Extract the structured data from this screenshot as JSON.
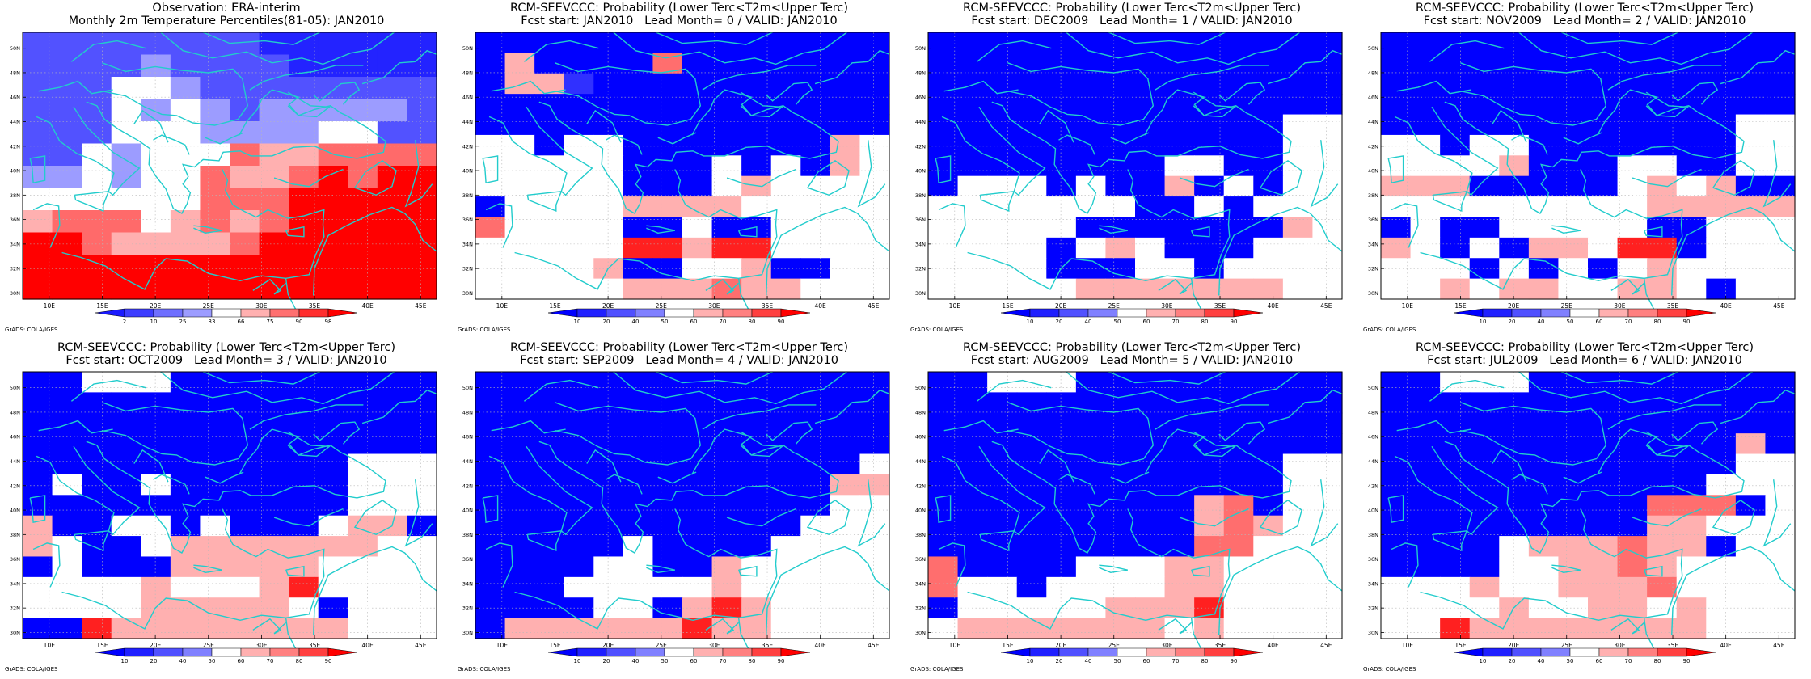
{
  "map": {
    "lon_ticks": [
      "10E",
      "15E",
      "20E",
      "25E",
      "30E",
      "35E",
      "40E",
      "45E"
    ],
    "lat_ticks": [
      "50N",
      "48N",
      "46N",
      "44N",
      "42N",
      "40N",
      "38N",
      "36N",
      "34N",
      "32N",
      "30N"
    ],
    "credit": "GrADS: COLA/IGES"
  },
  "panels": [
    {
      "title1": "Observation: ERA-interim",
      "title2": "Monthly 2m Temperature Percentiles(81-05): JAN2010",
      "legend_labels": [
        "2",
        "10",
        "25",
        "33",
        "66",
        "75",
        "90",
        "98"
      ],
      "legend_colors": [
        "#1a1aff",
        "#3d3dff",
        "#6f6fff",
        "#9c9cff",
        "#ffffff",
        "#ffb0b0",
        "#ff7070",
        "#ff2e2e",
        "#ff0000"
      ],
      "grid": [
        "22222222000000",
        "22223222200000",
        "22244322222222",
        "22243432333332",
        "22244433334422",
        "22434457667777",
        "33434576678788",
        "44444577788888",
        "67775676788888",
        "88766667888888",
        "88888888888888",
        "88888888888888"
      ]
    },
    {
      "title1": "RCM-SEEVCCC: Probability (Lower Terc<T2m<Upper Terc)",
      "title2": "Fcst start: JAN2010   Lead Month= 0 / VALID: JAN2010",
      "legend_labels": [
        "10",
        "20",
        "40",
        "50",
        "60",
        "70",
        "80",
        "90"
      ],
      "legend_colors": [
        "#0000ff",
        "#2020ff",
        "#5050ff",
        "#8080ff",
        "#ffffff",
        "#ffb0b0",
        "#ff8080",
        "#ff4040",
        "#ff0000"
      ],
      "grid": [
        "AAAAAAAAAAAAAA",
        "ASAAAARAAAAAAA",
        "ASSBAAAAAAAAAA",
        "AAAAAAAAAAAAAA",
        "AAAAAAAAAAAAAA",
        "WWAWWAAAAAAASW",
        "WWWWWAAAWAWASW",
        "WWWWWAAAWSWWWW",
        "AWWWWSSSSWWWWW",
        "RWWWWAAWAAWWWW",
        "WWWWWTTSTTWWWW",
        "WWWWSAAWWSAAWW",
        "WWWWWSSSRSSWWW"
      ]
    },
    {
      "title1": "RCM-SEEVCCC: Probability (Lower Terc<T2m<Upper Terc)",
      "title2": "Fcst start: DEC2009   Lead Month= 1 / VALID: JAN2010",
      "legend_labels": [
        "10",
        "20",
        "40",
        "50",
        "60",
        "70",
        "80",
        "90"
      ],
      "legend_colors": [
        "#0000ff",
        "#2020ff",
        "#5050ff",
        "#8080ff",
        "#ffffff",
        "#ffb0b0",
        "#ff8080",
        "#ff4040",
        "#ff0000"
      ],
      "grid": [
        "AAAAAAAAAAAAAA",
        "AAAAAAAAAAAAAA",
        "AAAAAAAAAAAAAA",
        "AAAAAAAAAAAAAA",
        "AAAAAAAAAAAAWW",
        "AAAAAAAAAAAAWW",
        "AAAAAAAAWWAAWW",
        "AWWWAWAASAWAWW",
        "WWWWWWWAAWAWWW",
        "WWWWWAAAAAAASW",
        "WWWWAWSWAAAWWW",
        "WWWWAAAWWAWWWW",
        "WWWWWSSSSSSSWW"
      ]
    },
    {
      "title1": "RCM-SEEVCCC: Probability (Lower Terc<T2m<Upper Terc)",
      "title2": "Fcst start: NOV2009   Lead Month= 2 / VALID: JAN2010",
      "legend_labels": [
        "10",
        "20",
        "40",
        "50",
        "60",
        "70",
        "80",
        "90"
      ],
      "legend_colors": [
        "#0000ff",
        "#2020ff",
        "#5050ff",
        "#8080ff",
        "#ffffff",
        "#ffb0b0",
        "#ff8080",
        "#ff4040",
        "#ff0000"
      ],
      "grid": [
        "AAAAAAAAAAAAAA",
        "AAAAAAAAAAAAAA",
        "AAAAAAAAAAAAAA",
        "AAAAAAAAAAAAAA",
        "AAAAAAAAAAAAWW",
        "WWAWWAAAAAAAWW",
        "WWWWSAAAWWAAWW",
        "SSSAAAAAWSWSAA",
        "WWWWWWWWWSSSSS",
        "AWAAWWWWWAAWWW",
        "SWAWASSWTTAWWW",
        "WWWAWAWAWSWWWW",
        "WWSWSSWWSSWAWW"
      ]
    },
    {
      "title1": "RCM-SEEVCCC: Probability (Lower Terc<T2m<Upper Terc)",
      "title2": "Fcst start: OCT2009   Lead Month= 3 / VALID: JAN2010",
      "legend_labels": [
        "10",
        "20",
        "40",
        "50",
        "60",
        "70",
        "80",
        "90"
      ],
      "legend_colors": [
        "#0000ff",
        "#2020ff",
        "#5050ff",
        "#8080ff",
        "#ffffff",
        "#ffb0b0",
        "#ff8080",
        "#ff4040",
        "#ff0000"
      ],
      "grid": [
        "AAWWWAAAAAAAAA",
        "AAAAAAAAAAAAAA",
        "AAAAAAAAAAAAAA",
        "AAAAAAAAAAAAAA",
        "AAAAAAAAAAAWWW",
        "AWAAWAAAAAAWWW",
        "AAAAAAAAAAAWWW",
        "SAAWWAWAAAWSSA",
        "SWAAWSSSSSSSWW",
        "AWAAASSSSSWWWW",
        "WWWWSWWWSTWWWW",
        "WWWWSSSSSWAWWW",
        "AATSSSSSSSSWWW"
      ]
    },
    {
      "title1": "RCM-SEEVCCC: Probability (Lower Terc<T2m<Upper Terc)",
      "title2": "Fcst start: SEP2009   Lead Month= 4 / VALID: JAN2010",
      "legend_labels": [
        "10",
        "20",
        "40",
        "50",
        "60",
        "70",
        "80",
        "90"
      ],
      "legend_colors": [
        "#0000ff",
        "#2020ff",
        "#5050ff",
        "#8080ff",
        "#ffffff",
        "#ffb0b0",
        "#ff8080",
        "#ff4040",
        "#ff0000"
      ],
      "grid": [
        "AAAAAAAAAAAAAA",
        "AAAAAAAAAAAAAA",
        "AAAAAAAAAAAAAA",
        "AAAAAAAAAAAAAA",
        "AAAAAAAAAAAAAW",
        "AAAAAAAAAAAASS",
        "AAAAAAAAAAAAWW",
        "AAAAAAAAAAAWWW",
        "AAAAAWAAAAWWWW",
        "AAAAWWAASWWWWW",
        "AAAWWWWWSWWWWW",
        "AAAAWWASTSWWWW",
        "ASSSSSSTSSWWWW"
      ]
    },
    {
      "title1": "RCM-SEEVCCC: Probability (Lower Terc<T2m<Upper Terc)",
      "title2": "Fcst start: AUG2009   Lead Month= 5 / VALID: JAN2010",
      "legend_labels": [
        "10",
        "20",
        "40",
        "50",
        "60",
        "70",
        "80",
        "90"
      ],
      "legend_colors": [
        "#0000ff",
        "#2020ff",
        "#5050ff",
        "#8080ff",
        "#ffffff",
        "#ffb0b0",
        "#ff8080",
        "#ff4040",
        "#ff0000"
      ],
      "grid": [
        "AAWWWAAAAAAAAA",
        "AAAAAAAAAAAAAA",
        "AAAAAAAAAAAAAA",
        "AAAAAAAAAAAAAA",
        "AAAAAAAAAAAAWW",
        "AAAAAAAAAAAAWW",
        "AAAAAAAAASRAWW",
        "AAAAAAAAASRSWW",
        "AAAAAAAAARRWWW",
        "RAAAAWWWSSWWWW",
        "RWWAWWWWSSWWWW",
        "AWWWWWSSSTWWWW",
        "WSSSSSSSWSWWWW"
      ]
    },
    {
      "title1": "RCM-SEEVCCC: Probability (Lower Terc<T2m<Upper Terc)",
      "title2": "Fcst start: JUL2009   Lead Month= 6 / VALID: JAN2010",
      "legend_labels": [
        "10",
        "20",
        "40",
        "50",
        "60",
        "70",
        "80",
        "90"
      ],
      "legend_colors": [
        "#0000ff",
        "#2020ff",
        "#5050ff",
        "#8080ff",
        "#ffffff",
        "#ffb0b0",
        "#ff8080",
        "#ff4040",
        "#ff0000"
      ],
      "grid": [
        "AAWWWAAAAAAAAA",
        "AAAAAAAAAAAAAA",
        "AAAAAAAAAAAAAA",
        "AAAAAAAAAAAASA",
        "AAAAAAAAAAAAWW",
        "AAAAAAAAAAAWWW",
        "AAAAAAAAARRRAW",
        "AAAAAAAAASSWWW",
        "AAAAWSSSRSSAWW",
        "AAAAWWSSRSWWWW",
        "WWWSWWSSSRWWWW",
        "WWWWSWWSSWSWWW",
        "WWTSSSSSSSSWWW"
      ]
    }
  ]
}
